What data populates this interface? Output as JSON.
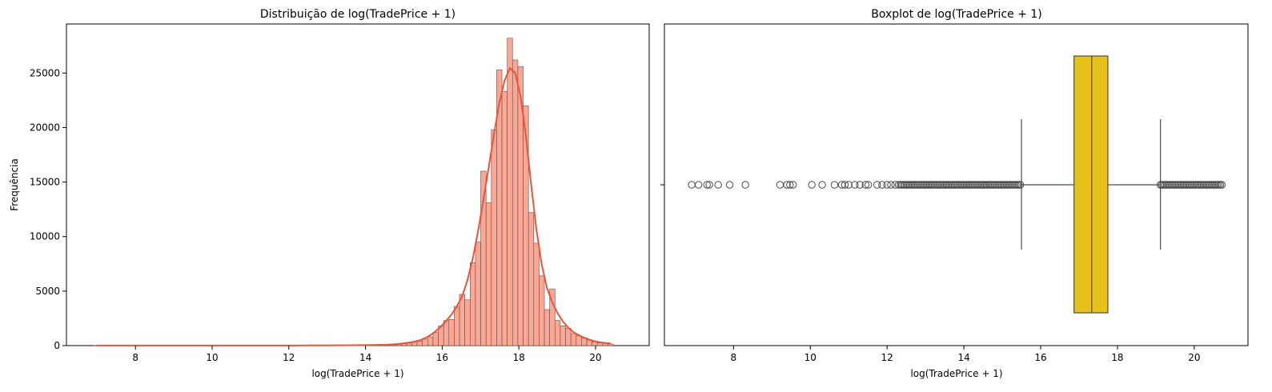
{
  "chart_data": [
    {
      "type": "histogram",
      "title": "Distribuição de log(TradePrice + 1)",
      "xlabel": "log(TradePrice + 1)",
      "ylabel": "Frequência",
      "xlim": [
        6.2,
        21.4
      ],
      "ylim": [
        0,
        29500
      ],
      "x_ticks": [
        8,
        10,
        12,
        14,
        16,
        18,
        20
      ],
      "y_ticks": [
        0,
        5000,
        10000,
        15000,
        20000,
        25000
      ],
      "bin_start": 6.91,
      "bin_width": 0.1383,
      "counts": [
        5,
        5,
        5,
        5,
        5,
        5,
        5,
        5,
        5,
        5,
        5,
        5,
        5,
        5,
        5,
        5,
        5,
        5,
        5,
        5,
        10,
        10,
        10,
        10,
        10,
        10,
        10,
        10,
        10,
        10,
        10,
        10,
        10,
        10,
        10,
        10,
        10,
        10,
        10,
        10,
        20,
        20,
        20,
        20,
        20,
        20,
        30,
        30,
        30,
        40,
        40,
        50,
        60,
        60,
        70,
        80,
        100,
        150,
        200,
        250,
        350,
        420,
        600,
        800,
        1200,
        1800,
        2300,
        2400,
        3600,
        4700,
        4200,
        7600,
        9500,
        16000,
        13100,
        19800,
        25300,
        23300,
        28200,
        26200,
        25600,
        22000,
        12200,
        9400,
        6400,
        3300,
        5200,
        2300,
        1800,
        1600,
        1100,
        900,
        700,
        500,
        350,
        250,
        200,
        150
      ],
      "kde_color": "#e8543c",
      "bar_color": "#f9a896",
      "edge_color": "#6b4a44"
    },
    {
      "type": "boxplot",
      "title": "Boxplot de log(TradePrice + 1)",
      "xlabel": "log(TradePrice + 1)",
      "xlim": [
        6.2,
        21.4
      ],
      "x_ticks": [
        8,
        10,
        12,
        14,
        16,
        18,
        20
      ],
      "q1": 16.87,
      "median": 17.33,
      "q3": 17.75,
      "whisker_low": 15.5,
      "whisker_high": 19.12,
      "max": 20.72,
      "outliers_low": [
        6.91,
        7.09,
        7.31,
        7.37,
        7.6,
        7.9,
        8.31,
        9.21,
        9.39,
        9.47,
        9.55,
        10.04,
        10.31,
        10.63,
        10.82,
        10.9,
        11.0,
        11.16,
        11.29,
        11.44,
        11.51,
        11.74,
        11.87,
        12.0,
        12.1,
        12.21,
        12.3
      ],
      "dense_low": [
        12.35,
        15.5
      ],
      "dense_high": [
        19.12,
        20.72
      ],
      "box_color": "#e6c21a",
      "line_color": "#4a4a4a"
    }
  ]
}
